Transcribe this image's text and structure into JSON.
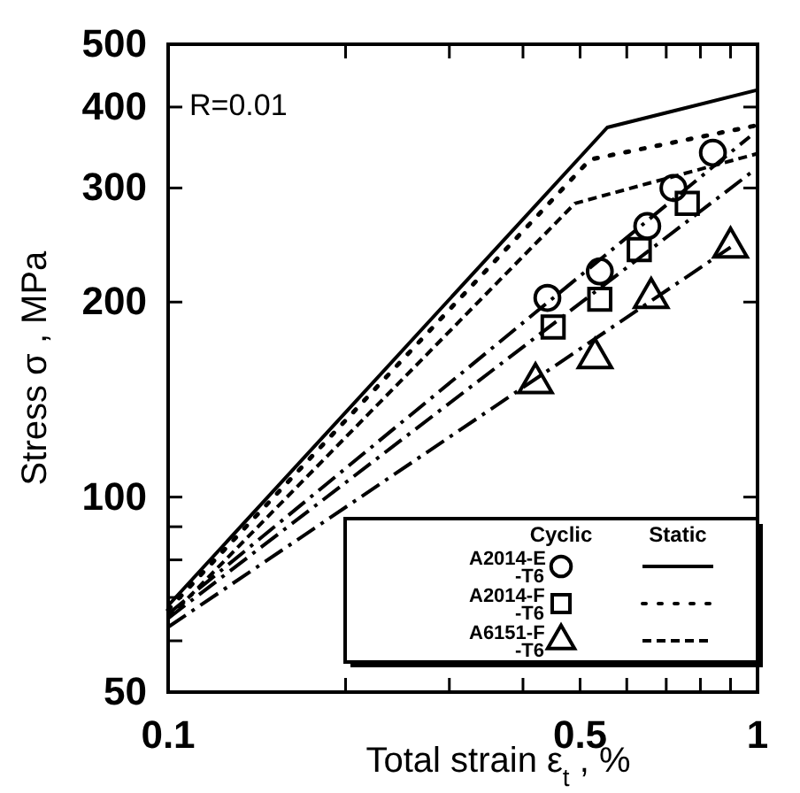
{
  "chart_data": {
    "type": "line",
    "xlabel": "Total strain ε$_{t}$ , %",
    "ylabel": "Stress σ , MPa",
    "annotations": [
      "R=0.01",
      "Cyclic",
      "Static"
    ],
    "log": "xy",
    "grid": false,
    "legend": "bottom right",
    "xlim": [
      0.1,
      1
    ],
    "xticks": [
      0.1,
      {
        "value": 0.2,
        "label": null
      },
      {
        "value": 0.3,
        "label": null
      },
      {
        "value": 0.4,
        "label": null
      },
      0.5,
      {
        "value": 0.6,
        "label": null
      },
      {
        "value": 0.7,
        "label": null
      },
      {
        "value": 0.8,
        "label": null
      },
      {
        "value": 0.9,
        "label": null
      },
      1
    ],
    "ylim": [
      50,
      500
    ],
    "yticks": [
      50,
      {
        "value": 60,
        "label": null
      },
      {
        "value": 70,
        "label": null
      },
      {
        "value": 80,
        "label": null
      },
      {
        "value": 90,
        "label": null
      },
      100,
      200,
      300,
      400,
      500
    ],
    "series": [
      {
        "type": "scatter",
        "name": "A2014-E-T6",
        "color": "#000000",
        "marker": "circle",
        "x": [
          0.44,
          0.54,
          0.65,
          0.72,
          0.84
        ],
        "values": [
          203,
          223,
          262,
          300,
          340
        ]
      },
      {
        "type": "scatter",
        "name": "A2014-F-T6",
        "color": "#000000",
        "marker": "square",
        "x": [
          0.45,
          0.54,
          0.63,
          0.76
        ],
        "values": [
          183,
          202,
          241,
          284
        ]
      },
      {
        "type": "scatter",
        "name": "A6151-F-T6",
        "color": "#000000",
        "marker": "triangle",
        "x": [
          0.42,
          0.53,
          0.66,
          0.9
        ],
        "values": [
          150,
          164,
          203,
          243
        ]
      },
      {
        "color": "#000000",
        "line_style": "solid",
        "x": [
          0.1,
          0.556,
          1.0
        ],
        "values": [
          68,
          372,
          425
        ]
      },
      {
        "color": "#000000",
        "line_style": "dotted",
        "x": [
          0.1,
          0.52,
          1.0
        ],
        "values": [
          67,
          332,
          375
        ]
      },
      {
        "color": "#000000",
        "line_style": "dashed",
        "x": [
          0.1,
          0.49,
          1.0
        ],
        "values": [
          65,
          284,
          339
        ]
      },
      {
        "color": "#000000",
        "line_style": "dashed",
        "x": [
          0.1,
          0.97
        ],
        "values": [
          66,
          360
        ]
      },
      {
        "color": "#000000",
        "line_style": "dashed",
        "x": [
          0.1,
          0.98
        ],
        "values": [
          65,
          318
        ]
      },
      {
        "color": "#000000",
        "line_style": "dashed",
        "x": [
          0.1,
          0.9
        ],
        "values": [
          63,
          243
        ]
      }
    ]
  }
}
